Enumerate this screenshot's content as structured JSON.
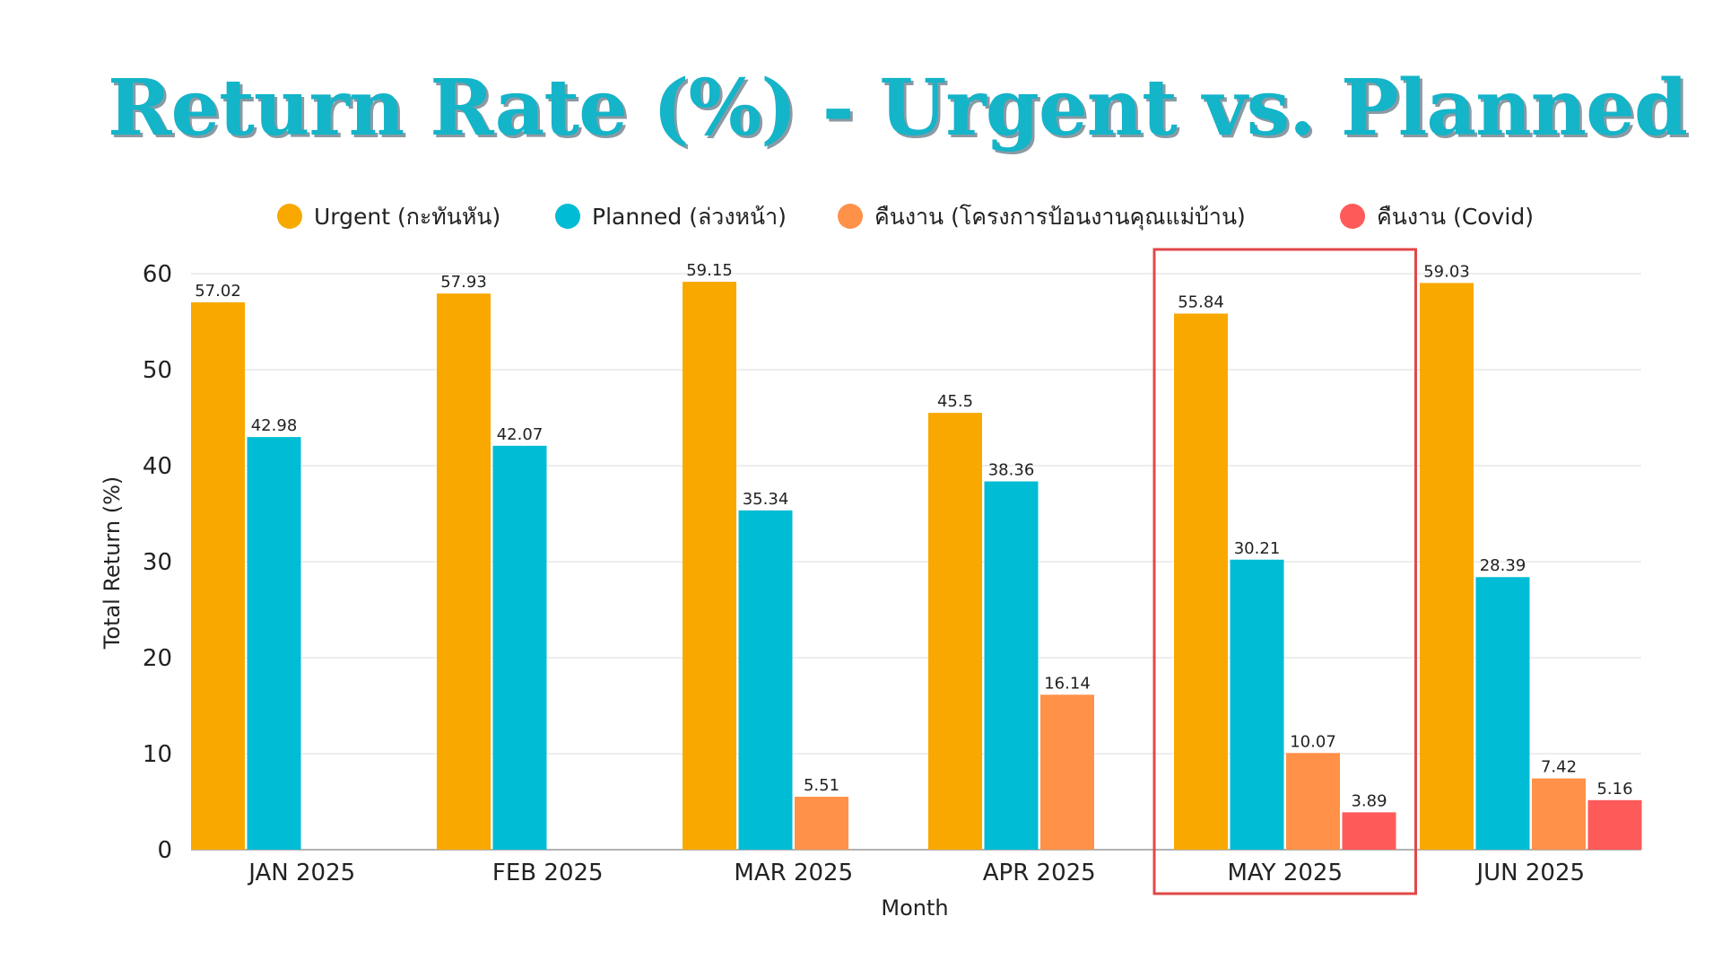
{
  "chart_data": {
    "type": "bar",
    "title": "Return Rate (%) - Urgent vs. Planned",
    "xlabel": "Month",
    "ylabel": "Total Return (%)",
    "ylim": [
      0,
      60
    ],
    "yticks": [
      0,
      10,
      20,
      30,
      40,
      50,
      60
    ],
    "grid": true,
    "legend_position": "top",
    "categories": [
      "JAN 2025",
      "FEB 2025",
      "MAR 2025",
      "APR 2025",
      "MAY 2025",
      "JUN 2025"
    ],
    "series": [
      {
        "name": "Urgent (กะทันหัน)",
        "color": "#f9a800",
        "values": [
          57.02,
          57.93,
          59.15,
          45.5,
          55.84,
          59.03
        ]
      },
      {
        "name": "Planned (ล่วงหน้า)",
        "color": "#00bcd4",
        "values": [
          42.98,
          42.07,
          35.34,
          38.36,
          30.21,
          28.39
        ]
      },
      {
        "name": "คืนงาน (โครงการป้อนงานคุณแม่บ้าน)",
        "color": "#ff9148",
        "values": [
          null,
          null,
          5.51,
          16.14,
          10.07,
          7.42
        ]
      },
      {
        "name": "คืนงาน (Covid)",
        "color": "#ff5a5a",
        "values": [
          null,
          null,
          null,
          null,
          3.89,
          5.16
        ]
      }
    ],
    "highlight": {
      "category": "MAY 2025",
      "color": "#e04848"
    }
  }
}
